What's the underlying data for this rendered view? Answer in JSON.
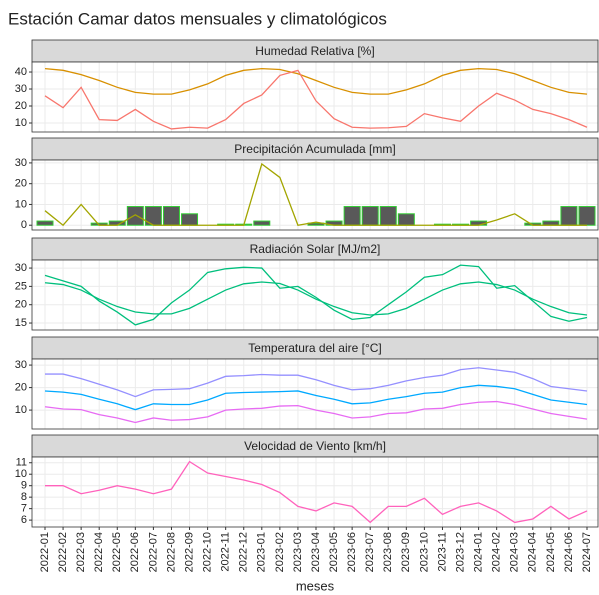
{
  "title": "Estación Camar datos mensuales y climatológicos",
  "x_label": "meses",
  "categories": [
    "2022-01",
    "2022-02",
    "2022-03",
    "2022-04",
    "2022-05",
    "2022-06",
    "2022-07",
    "2022-08",
    "2022-09",
    "2022-10",
    "2022-11",
    "2022-12",
    "2023-01",
    "2023-02",
    "2023-03",
    "2023-04",
    "2023-05",
    "2023-06",
    "2023-07",
    "2023-08",
    "2023-09",
    "2023-10",
    "2023-11",
    "2023-12",
    "2024-01",
    "2024-02",
    "2024-03",
    "2024-04",
    "2024-05",
    "2024-06",
    "2024-07"
  ],
  "chart_data": [
    {
      "type": "line",
      "title": "Humedad Relativa [%]",
      "ylim": [
        4.7,
        45.9
      ],
      "yticks": [
        10,
        20,
        30,
        40
      ],
      "grid": true,
      "series": [
        {
          "color": "#D89000",
          "values": [
            42,
            41,
            38.5,
            35,
            31,
            28,
            27,
            27,
            29.5,
            33,
            38,
            41,
            42,
            41.5,
            39,
            35,
            31,
            28,
            27,
            27,
            29.5,
            33,
            38,
            41,
            42,
            41.5,
            39,
            35,
            31,
            28,
            27
          ]
        },
        {
          "color": "#F8766D",
          "values": [
            26,
            19,
            31,
            12,
            11.5,
            18,
            11,
            6.5,
            7.5,
            7,
            12,
            21.5,
            26.5,
            38,
            41,
            23,
            12.5,
            7.5,
            7,
            7.2,
            8,
            15.5,
            13,
            11,
            20,
            27.5,
            23.5,
            18,
            15.5,
            12,
            7.5
          ]
        }
      ]
    },
    {
      "type": "bar",
      "title": "Precipitación Acumulada [mm]",
      "ylim": [
        -2.3,
        31.4
      ],
      "yticks": [
        0,
        10,
        20,
        30
      ],
      "grid": true,
      "series": [
        {
          "type": "bar",
          "color": "#595959",
          "outline": "#33CC33",
          "values": [
            2,
            0,
            0,
            1,
            2,
            9,
            9,
            9,
            5.5,
            0,
            0.5,
            0.5,
            2,
            0,
            0,
            1,
            2,
            9,
            9,
            9,
            5.5,
            0,
            0.5,
            0.5,
            2,
            0,
            0,
            1,
            2,
            9,
            9
          ]
        },
        {
          "type": "line",
          "color": "#A3A500",
          "values": [
            7,
            0,
            10,
            0,
            0,
            5,
            0,
            0,
            0,
            0,
            0,
            0,
            29.5,
            23,
            0,
            1.5,
            0,
            0,
            0,
            0,
            0,
            0,
            0,
            0,
            0,
            2.5,
            5.5,
            0,
            0,
            0,
            0
          ]
        }
      ]
    },
    {
      "type": "line",
      "title": "Radiación Solar [MJ/m2]",
      "ylim": [
        13.1,
        32.2
      ],
      "yticks": [
        15,
        20,
        25,
        30
      ],
      "grid": true,
      "series": [
        {
          "color": "#00BF7D",
          "values": [
            26,
            25.5,
            24,
            21.5,
            19.5,
            18,
            17.5,
            17.5,
            19,
            21.5,
            24,
            25.7,
            26.2,
            25.8,
            24,
            21.5,
            19.5,
            17.8,
            17.2,
            17.5,
            19,
            21.5,
            24,
            25.7,
            26.2,
            25.5,
            24,
            21.5,
            19.5,
            17.8,
            17.2
          ]
        },
        {
          "color": "#00BF7D",
          "values": [
            28,
            26.5,
            25,
            21,
            18,
            14.5,
            16,
            20.5,
            24,
            28.8,
            29.8,
            30.2,
            30,
            24.5,
            25,
            22,
            18.5,
            16,
            16.5,
            20,
            23.5,
            27.5,
            28.2,
            30.8,
            30.4,
            24.5,
            25.2,
            21,
            16.8,
            15.5,
            16.5
          ]
        }
      ]
    },
    {
      "type": "line",
      "title": "Temperatura del aire [°C]",
      "ylim": [
        1.6,
        32.7
      ],
      "yticks": [
        10,
        20,
        30
      ],
      "grid": true,
      "series": [
        {
          "color": "#9590FF",
          "values": [
            26,
            26,
            24,
            21.5,
            19,
            16,
            19,
            19.2,
            19.5,
            22,
            25,
            25.3,
            25.8,
            25.5,
            25.5,
            23.5,
            21,
            19,
            19.5,
            21,
            23,
            24.5,
            25.5,
            28,
            28.8,
            27.8,
            26.8,
            24,
            20.5,
            19.5,
            18.5
          ]
        },
        {
          "color": "#00A9FF",
          "values": [
            18.5,
            18,
            17,
            14.8,
            12.8,
            10.2,
            12.8,
            12.5,
            12.5,
            14.5,
            17.5,
            17.8,
            18,
            18.2,
            18.5,
            16.5,
            14.8,
            12.8,
            13.2,
            14.8,
            16,
            17.5,
            18,
            20,
            21,
            20.5,
            19.5,
            17,
            14.5,
            13.5,
            12.5
          ]
        },
        {
          "color": "#E76BF3",
          "values": [
            11.5,
            10.5,
            10.2,
            8,
            6.5,
            4.5,
            6.5,
            5.5,
            5.8,
            7,
            10,
            10.5,
            10.8,
            11.8,
            12,
            10,
            8.5,
            6.5,
            7,
            8.5,
            8.8,
            10.5,
            10.8,
            12.5,
            13.5,
            13.8,
            12.5,
            10.5,
            8.5,
            7.2,
            6
          ]
        }
      ]
    },
    {
      "type": "line",
      "title": "Velocidad de Viento [km/h]",
      "ylim": [
        5.4,
        11.5
      ],
      "yticks": [
        6,
        7,
        8,
        9,
        10,
        11
      ],
      "grid": true,
      "series": [
        {
          "color": "#FF62BC",
          "values": [
            9,
            9,
            8.3,
            8.6,
            9,
            8.7,
            8.3,
            8.7,
            11.1,
            10.1,
            9.8,
            9.5,
            9.1,
            8.4,
            7.2,
            6.8,
            7.5,
            7.2,
            5.8,
            7.2,
            7.2,
            7.9,
            6.5,
            7.2,
            7.5,
            6.8,
            5.8,
            6.1,
            7.2,
            6.1,
            6.8
          ]
        }
      ]
    }
  ]
}
